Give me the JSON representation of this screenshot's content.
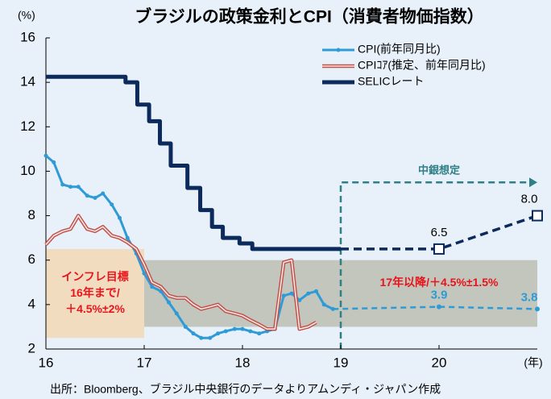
{
  "chart_data": {
    "type": "line",
    "title": "ブラジルの政策金利とCPI（消費者物価指数）",
    "ylabel": "(%)",
    "xlabel": "(年)",
    "source": "出所：Bloomberg、ブラジル中央銀行のデータよりアムンディ・ジャパン作成",
    "xlim": [
      16,
      21
    ],
    "xticks": [
      16,
      17,
      18,
      19,
      20
    ],
    "ylim": [
      2,
      16
    ],
    "yticks": [
      2,
      4,
      6,
      8,
      10,
      12,
      14,
      16
    ],
    "legend": "upper right",
    "series": [
      {
        "name": "CPI(前年同月比)",
        "color": "#2e9bd6",
        "style": "markers",
        "x": [
          16,
          16.08,
          16.17,
          16.25,
          16.33,
          16.42,
          16.5,
          16.58,
          16.67,
          16.75,
          16.83,
          16.92,
          17,
          17.08,
          17.17,
          17.25,
          17.33,
          17.42,
          17.5,
          17.58,
          17.67,
          17.75,
          17.83,
          17.92,
          18,
          18.08,
          18.17,
          18.25,
          18.33,
          18.42,
          18.5,
          18.58,
          18.67,
          18.75,
          18.83,
          18.92
        ],
        "values": [
          10.7,
          10.4,
          9.4,
          9.3,
          9.3,
          8.9,
          8.8,
          9.0,
          8.5,
          7.9,
          7.0,
          6.3,
          5.4,
          4.8,
          4.6,
          4.1,
          3.6,
          3.0,
          2.7,
          2.5,
          2.5,
          2.7,
          2.8,
          2.9,
          2.9,
          2.8,
          2.7,
          2.8,
          2.9,
          4.4,
          4.5,
          4.2,
          4.5,
          4.6,
          4.0,
          3.8
        ],
        "forecast": {
          "x": [
            20,
            21
          ],
          "values": [
            3.9,
            3.8
          ]
        }
      },
      {
        "name": "CPIｺｱ(推定、前年同月比)",
        "color": "#c0504d",
        "style": "double",
        "x": [
          16,
          16.08,
          16.17,
          16.25,
          16.33,
          16.42,
          16.5,
          16.58,
          16.67,
          16.75,
          16.83,
          16.92,
          17,
          17.08,
          17.17,
          17.25,
          17.33,
          17.42,
          17.5,
          17.58,
          17.67,
          17.75,
          17.83,
          17.92,
          18,
          18.08,
          18.17,
          18.25,
          18.33,
          18.42,
          18.5,
          18.58,
          18.67,
          18.75
        ],
        "values": [
          6.7,
          7.1,
          7.3,
          7.4,
          8.0,
          7.4,
          7.3,
          7.5,
          7.1,
          7.0,
          6.8,
          6.5,
          5.8,
          5.0,
          4.8,
          4.4,
          4.3,
          4.3,
          4.0,
          3.8,
          3.9,
          4.0,
          3.7,
          3.6,
          3.5,
          3.3,
          3.1,
          2.9,
          2.9,
          5.9,
          6.0,
          2.9,
          3.0,
          3.2
        ]
      },
      {
        "name": "SELICレート",
        "color": "#0c2a5c",
        "style": "step",
        "x": [
          16,
          16.81,
          16.93,
          17.05,
          17.16,
          17.27,
          17.44,
          17.57,
          17.69,
          17.8,
          17.97,
          18.1,
          19.0
        ],
        "values": [
          14.25,
          14.0,
          13.0,
          12.25,
          11.25,
          10.25,
          9.25,
          8.25,
          7.5,
          7.0,
          6.75,
          6.5,
          6.5
        ],
        "forecast": {
          "x": [
            20,
            21
          ],
          "values": [
            6.5,
            8.0
          ],
          "value_labels": [
            "6.5",
            "8.0"
          ]
        }
      }
    ],
    "targets": [
      {
        "xlim": [
          16,
          17
        ],
        "ylim": [
          2.5,
          6.5
        ],
        "color": "#f2dcc0",
        "label": [
          "インフレ目標",
          "16年まで/",
          "＋4.5%±2%"
        ]
      },
      {
        "xlim": [
          17,
          21
        ],
        "ylim": [
          3,
          6
        ],
        "color": "#b5b7a8",
        "label": [
          "17年以降/＋4.5%±1.5%"
        ]
      }
    ],
    "forecast_region": {
      "x": 19,
      "y": 9.5,
      "label": "中銀想定",
      "color": "#2e7f86"
    }
  }
}
